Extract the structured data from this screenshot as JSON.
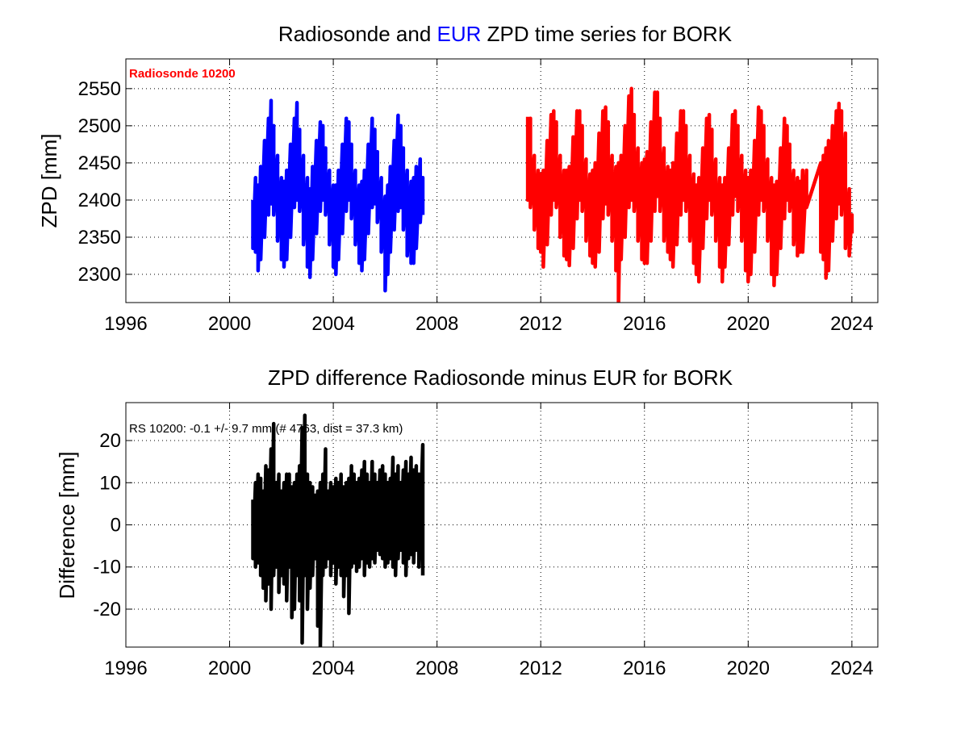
{
  "colors": {
    "eur": "#0000ff",
    "radiosonde": "#ff0000",
    "difference": "#000000"
  },
  "chart_data": [
    {
      "type": "line",
      "title": {
        "prefix": "Radiosonde and ",
        "highlight": "EUR",
        "suffix": " ZPD time series for BORK"
      },
      "ylabel": "ZPD [mm]",
      "xlabel": "",
      "xlim": [
        1996,
        2025
      ],
      "ylim": [
        2262,
        2590
      ],
      "xticks": [
        "1996",
        "2000",
        "2004",
        "2008",
        "2012",
        "2016",
        "2020",
        "2024"
      ],
      "yticks": [
        "2300",
        "2350",
        "2400",
        "2450",
        "2500",
        "2550"
      ],
      "grid": true,
      "annotation": "Radiosonde 10200",
      "series": [
        {
          "color": "#0000ff",
          "x": [
            2000.9,
            2001.0,
            2001.1,
            2001.2,
            2001.35,
            2001.5,
            2001.6,
            2001.7,
            2001.85,
            2002.0,
            2002.1,
            2002.2,
            2002.35,
            2002.5,
            2002.6,
            2002.7,
            2002.85,
            2003.0,
            2003.1,
            2003.2,
            2003.35,
            2003.5,
            2003.6,
            2003.7,
            2003.85,
            2004.0,
            2004.1,
            2004.2,
            2004.35,
            2004.5,
            2004.6,
            2004.7,
            2004.85,
            2005.0,
            2005.1,
            2005.2,
            2005.35,
            2005.5,
            2005.6,
            2005.7,
            2005.85,
            2006.0,
            2006.1,
            2006.2,
            2006.35,
            2006.5,
            2006.6,
            2006.7,
            2006.85,
            2007.0,
            2007.1,
            2007.2,
            2007.35,
            2007.45
          ],
          "low": [
            2335,
            2330,
            2305,
            2320,
            2350,
            2380,
            2395,
            2380,
            2345,
            2320,
            2310,
            2320,
            2350,
            2390,
            2400,
            2385,
            2340,
            2310,
            2296,
            2320,
            2355,
            2385,
            2400,
            2380,
            2340,
            2310,
            2300,
            2320,
            2355,
            2385,
            2400,
            2375,
            2340,
            2315,
            2305,
            2320,
            2355,
            2390,
            2395,
            2370,
            2330,
            2278,
            2300,
            2330,
            2360,
            2385,
            2390,
            2360,
            2325,
            2315,
            2315,
            2335,
            2370,
            2380
          ],
          "high": [
            2400,
            2430,
            2420,
            2445,
            2480,
            2510,
            2534,
            2500,
            2460,
            2430,
            2425,
            2440,
            2475,
            2510,
            2531,
            2495,
            2460,
            2430,
            2415,
            2445,
            2480,
            2505,
            2500,
            2470,
            2440,
            2420,
            2420,
            2440,
            2475,
            2510,
            2505,
            2475,
            2440,
            2420,
            2425,
            2440,
            2475,
            2510,
            2495,
            2465,
            2430,
            2405,
            2420,
            2445,
            2480,
            2514,
            2500,
            2470,
            2440,
            2425,
            2430,
            2445,
            2455,
            2430
          ]
        },
        {
          "color": "#ff0000",
          "x": [
            2011.5,
            2011.6,
            2011.75,
            2011.9,
            2012.0,
            2012.1,
            2012.25,
            2012.4,
            2012.5,
            2012.6,
            2012.75,
            2012.9,
            2013.0,
            2013.1,
            2013.25,
            2013.4,
            2013.5,
            2013.6,
            2013.75,
            2013.9,
            2014.0,
            2014.1,
            2014.25,
            2014.4,
            2014.5,
            2014.6,
            2014.75,
            2014.9,
            2015.0,
            2015.1,
            2015.25,
            2015.4,
            2015.5,
            2015.6,
            2015.75,
            2015.9,
            2016.0,
            2016.1,
            2016.25,
            2016.4,
            2016.5,
            2016.6,
            2016.75,
            2016.9,
            2017.0,
            2017.1,
            2017.25,
            2017.4,
            2017.5,
            2017.6,
            2017.75,
            2017.9,
            2018.0,
            2018.1,
            2018.25,
            2018.4,
            2018.5,
            2018.6,
            2018.75,
            2018.9,
            2019.0,
            2019.1,
            2019.25,
            2019.4,
            2019.5,
            2019.6,
            2019.75,
            2019.9,
            2020.0,
            2020.1,
            2020.25,
            2020.4,
            2020.5,
            2020.6,
            2020.75,
            2020.9,
            2021.0,
            2021.1,
            2021.25,
            2021.4,
            2021.5,
            2021.6,
            2021.75,
            2021.9,
            2022.0,
            2022.1,
            2022.25,
            2022.8,
            2022.9,
            2023.0,
            2023.1,
            2023.25,
            2023.4,
            2023.5,
            2023.6,
            2023.75,
            2023.9,
            2024.0
          ],
          "low": [
            2400,
            2390,
            2360,
            2335,
            2330,
            2310,
            2340,
            2380,
            2400,
            2390,
            2350,
            2325,
            2320,
            2312,
            2335,
            2375,
            2400,
            2385,
            2345,
            2325,
            2315,
            2310,
            2330,
            2375,
            2395,
            2380,
            2345,
            2305,
            2263,
            2320,
            2350,
            2390,
            2400,
            2385,
            2345,
            2320,
            2315,
            2315,
            2345,
            2385,
            2405,
            2385,
            2345,
            2330,
            2320,
            2310,
            2340,
            2380,
            2400,
            2385,
            2345,
            2315,
            2300,
            2290,
            2335,
            2375,
            2400,
            2380,
            2345,
            2310,
            2290,
            2310,
            2340,
            2380,
            2405,
            2385,
            2345,
            2305,
            2290,
            2300,
            2330,
            2380,
            2400,
            2385,
            2345,
            2300,
            2285,
            2300,
            2335,
            2375,
            2400,
            2385,
            2340,
            2325,
            2330,
            2330,
            2390,
            2330,
            2320,
            2295,
            2305,
            2345,
            2375,
            2395,
            2380,
            2335,
            2325,
            2355
          ],
          "high": [
            2512,
            2510,
            2460,
            2440,
            2435,
            2440,
            2480,
            2515,
            2520,
            2505,
            2460,
            2440,
            2440,
            2445,
            2485,
            2520,
            2520,
            2500,
            2455,
            2435,
            2440,
            2450,
            2490,
            2520,
            2525,
            2505,
            2460,
            2445,
            2450,
            2460,
            2500,
            2540,
            2550,
            2515,
            2470,
            2450,
            2455,
            2465,
            2505,
            2545,
            2545,
            2510,
            2470,
            2445,
            2440,
            2450,
            2490,
            2520,
            2520,
            2500,
            2460,
            2435,
            2420,
            2430,
            2470,
            2510,
            2515,
            2495,
            2455,
            2430,
            2420,
            2430,
            2470,
            2515,
            2520,
            2500,
            2460,
            2440,
            2430,
            2440,
            2480,
            2525,
            2520,
            2500,
            2455,
            2430,
            2420,
            2425,
            2470,
            2510,
            2500,
            2475,
            2440,
            2430,
            2425,
            2440,
            2440,
            2450,
            2460,
            2470,
            2480,
            2500,
            2520,
            2530,
            2520,
            2490,
            2415,
            2380
          ]
        }
      ]
    },
    {
      "type": "line",
      "title": "ZPD difference Radiosonde minus EUR for BORK",
      "ylabel": "Difference [mm]",
      "xlabel": "",
      "xlim": [
        1996,
        2025
      ],
      "ylim": [
        -29,
        29
      ],
      "xticks": [
        "1996",
        "2000",
        "2004",
        "2008",
        "2012",
        "2016",
        "2020",
        "2024"
      ],
      "yticks": [
        "-20",
        "-10",
        "0",
        "10",
        "20"
      ],
      "grid": true,
      "annotation": "RS 10200: -0.1 +/- 9.7 mm (# 4763, dist =  37.3 km)",
      "series": [
        {
          "color": "#000000",
          "x": [
            2000.9,
            2001.0,
            2001.1,
            2001.2,
            2001.3,
            2001.4,
            2001.5,
            2001.6,
            2001.7,
            2001.8,
            2001.9,
            2002.0,
            2002.1,
            2002.2,
            2002.3,
            2002.4,
            2002.5,
            2002.6,
            2002.7,
            2002.8,
            2002.9,
            2003.0,
            2003.1,
            2003.2,
            2003.3,
            2003.4,
            2003.5,
            2003.6,
            2003.7,
            2003.8,
            2003.9,
            2004.0,
            2004.1,
            2004.2,
            2004.3,
            2004.4,
            2004.5,
            2004.6,
            2004.7,
            2004.8,
            2004.9,
            2005.0,
            2005.1,
            2005.2,
            2005.3,
            2005.4,
            2005.5,
            2005.6,
            2005.7,
            2005.8,
            2005.9,
            2006.0,
            2006.1,
            2006.2,
            2006.3,
            2006.4,
            2006.5,
            2006.6,
            2006.7,
            2006.8,
            2006.9,
            2007.0,
            2007.1,
            2007.2,
            2007.3,
            2007.45
          ],
          "low": [
            -8,
            -10,
            -9,
            -12,
            -15,
            -18,
            -14,
            -20,
            -12,
            -10,
            -16,
            -12,
            -14,
            -18,
            -10,
            -22,
            -20,
            -12,
            -18,
            -28,
            -12,
            -20,
            -15,
            -12,
            -8,
            -24,
            -29,
            -12,
            -10,
            -8,
            -12,
            -9,
            -14,
            -10,
            -12,
            -17,
            -12,
            -21,
            -10,
            -9,
            -11,
            -10,
            -8,
            -12,
            -9,
            -10,
            -8,
            -9,
            -6,
            -7,
            -8,
            -10,
            -9,
            -8,
            -10,
            -12,
            -8,
            -6,
            -9,
            -12,
            -8,
            -7,
            -9,
            -6,
            -10,
            -12
          ],
          "high": [
            6,
            10,
            12,
            11,
            8,
            14,
            13,
            18,
            24,
            10,
            12,
            8,
            10,
            12,
            12,
            9,
            10,
            12,
            14,
            23,
            26,
            12,
            10,
            9,
            7,
            8,
            10,
            12,
            18,
            8,
            10,
            9,
            11,
            10,
            12,
            9,
            10,
            11,
            14,
            12,
            10,
            11,
            13,
            15,
            12,
            10,
            15,
            12,
            10,
            13,
            14,
            12,
            10,
            11,
            16,
            12,
            14,
            10,
            13,
            15,
            12,
            16,
            13,
            14,
            12,
            19
          ]
        }
      ]
    }
  ]
}
